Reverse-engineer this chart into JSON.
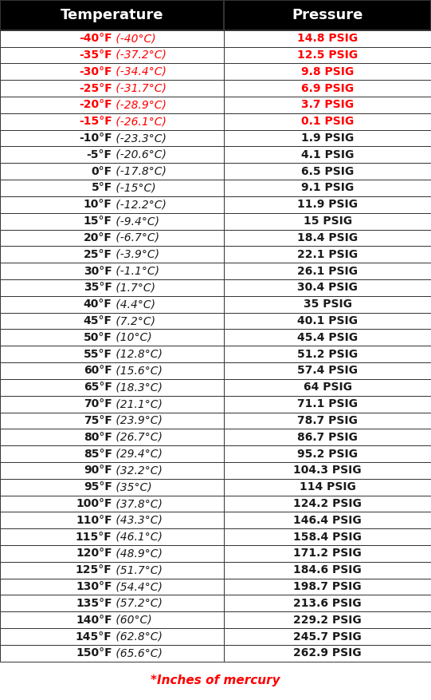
{
  "temperatures_f": [
    "-40°F",
    "-35°F",
    "-30°F",
    "-25°F",
    "-20°F",
    "-15°F",
    "-10°F",
    "-5°F",
    "0°F",
    "5°F",
    "10°F",
    "15°F",
    "20°F",
    "25°F",
    "30°F",
    "35°F",
    "40°F",
    "45°F",
    "50°F",
    "55°F",
    "60°F",
    "65°F",
    "70°F",
    "75°F",
    "80°F",
    "85°F",
    "90°F",
    "95°F",
    "100°F",
    "110°F",
    "115°F",
    "120°F",
    "125°F",
    "130°F",
    "135°F",
    "140°F",
    "145°F",
    "150°F"
  ],
  "temperatures_c": [
    "(-40°C)",
    "(-37.2°C)",
    "(-34.4°C)",
    "(-31.7°C)",
    "(-28.9°C)",
    "(-26.1°C)",
    "(-23.3°C)",
    "(-20.6°C)",
    "(-17.8°C)",
    "(-15°C)",
    "(-12.2°C)",
    "(-9.4°C)",
    "(-6.7°C)",
    "(-3.9°C)",
    "(-1.1°C)",
    "(1.7°C)",
    "(4.4°C)",
    "(7.2°C)",
    "(10°C)",
    "(12.8°C)",
    "(15.6°C)",
    "(18.3°C)",
    "(21.1°C)",
    "(23.9°C)",
    "(26.7°C)",
    "(29.4°C)",
    "(32.2°C)",
    "(35°C)",
    "(37.8°C)",
    "(43.3°C)",
    "(46.1°C)",
    "(48.9°C)",
    "(51.7°C)",
    "(54.4°C)",
    "(57.2°C)",
    "(60°C)",
    "(62.8°C)",
    "(65.6°C)"
  ],
  "pressures": [
    "14.8 PSIG",
    "12.5 PSIG",
    "9.8 PSIG",
    "6.9 PSIG",
    "3.7 PSIG",
    "0.1 PSIG",
    "1.9 PSIG",
    "4.1 PSIG",
    "6.5 PSIG",
    "9.1 PSIG",
    "11.9 PSIG",
    "15 PSIG",
    "18.4 PSIG",
    "22.1 PSIG",
    "26.1 PSIG",
    "30.4 PSIG",
    "35 PSIG",
    "40.1 PSIG",
    "45.4 PSIG",
    "51.2 PSIG",
    "57.4 PSIG",
    "64 PSIG",
    "71.1 PSIG",
    "78.7 PSIG",
    "86.7 PSIG",
    "95.2 PSIG",
    "104.3 PSIG",
    "114 PSIG",
    "124.2 PSIG",
    "146.4 PSIG",
    "158.4 PSIG",
    "171.2 PSIG",
    "184.6 PSIG",
    "198.7 PSIG",
    "213.6 PSIG",
    "229.2 PSIG",
    "245.7 PSIG",
    "262.9 PSIG"
  ],
  "red_row_count": 6,
  "header_bg": "#000000",
  "header_fg": "#ffffff",
  "border_color": "#333333",
  "text_normal_color": "#1a1a1a",
  "text_red_color": "#ff0000",
  "col_header_temp": "Temperature",
  "col_header_pressure": "Pressure",
  "footer_text": "*Inches of mercury",
  "footer_color": "#ff0000",
  "col_split": 0.52,
  "header_fontsize": 13,
  "data_fontsize": 10,
  "footer_fontsize": 11
}
